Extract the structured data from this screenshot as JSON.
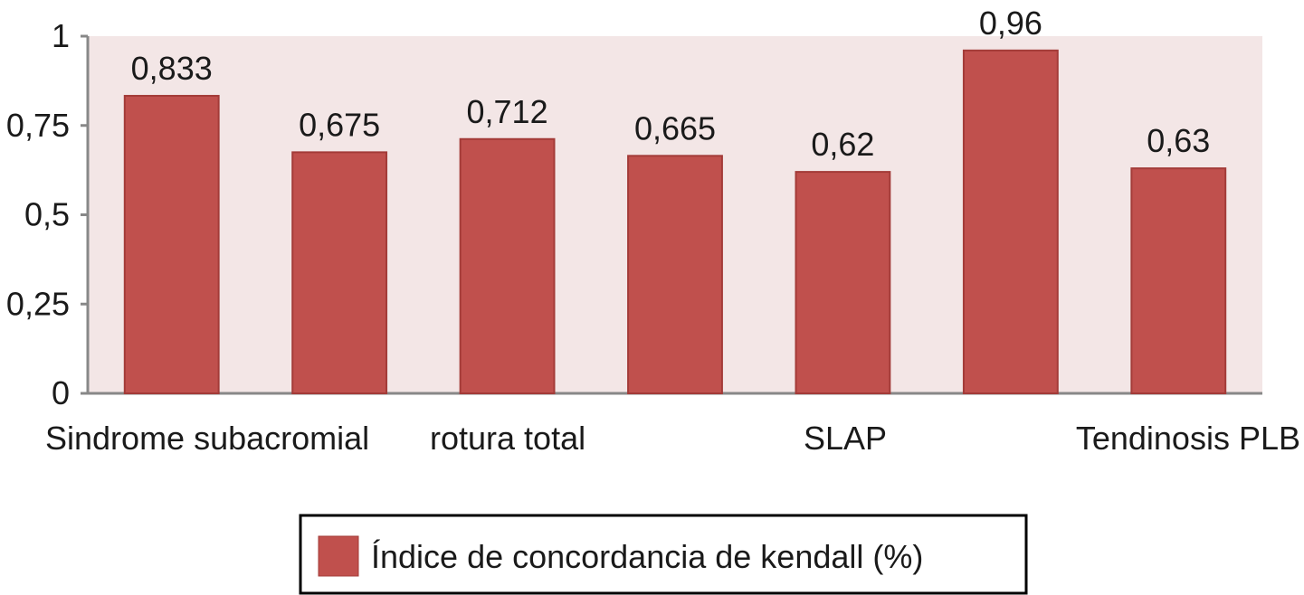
{
  "chart_data": {
    "type": "bar",
    "categories": [
      "Sindrome subacromial",
      "rotura total",
      "",
      "",
      "SLAP",
      "",
      "Tendinosis PLB"
    ],
    "series": [
      {
        "name": "Índice de concordancia de kendall (%)",
        "values": [
          0.833,
          0.675,
          0.712,
          0.665,
          0.62,
          0.96,
          0.63
        ]
      }
    ],
    "data_labels": [
      "0,833",
      "0,675",
      "0,712",
      "0,665",
      "0,62",
      "0,96",
      "0,63"
    ],
    "y_ticks": [
      0,
      0.25,
      0.5,
      0.75,
      1
    ],
    "y_tick_labels": [
      "0",
      "0,25",
      "0,5",
      "0,75",
      "1"
    ],
    "ylim": [
      0,
      1
    ],
    "grid": false,
    "legend_position": "bottom",
    "colors": {
      "bar": "#c0504d",
      "bar_edge": "#a33b38",
      "plot_background": "#f3e6e6",
      "axis": "#888888"
    }
  }
}
